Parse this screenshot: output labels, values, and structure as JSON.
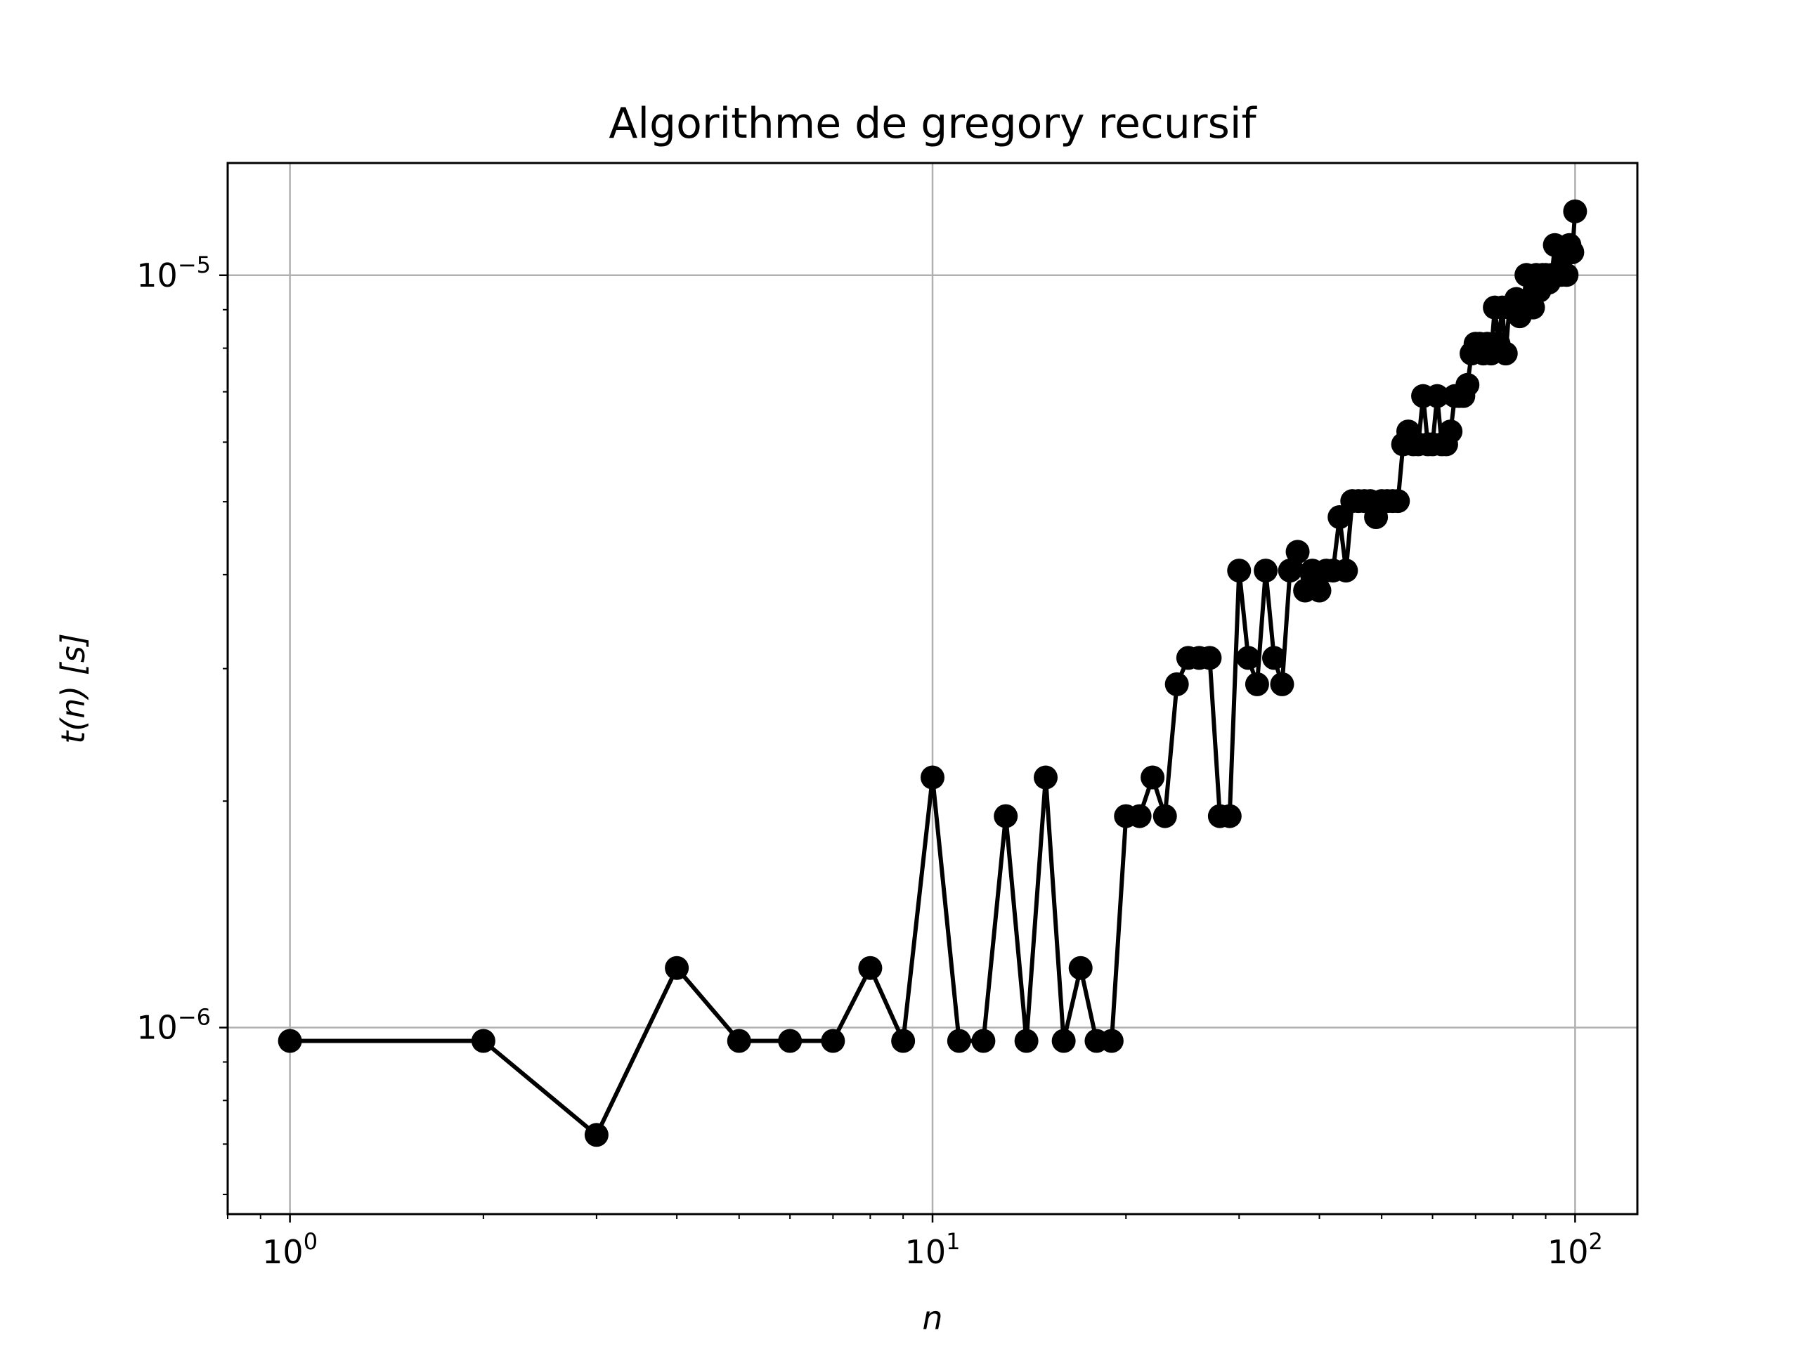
{
  "chart_data": {
    "type": "line",
    "title": "Algorithme de gregory recursif",
    "xlabel": "n",
    "ylabel": "t(n) [s]",
    "xscale": "log",
    "yscale": "log",
    "xlim": [
      0.8,
      125
    ],
    "ylim": [
      5.65e-07,
      1.41e-05
    ],
    "grid": true,
    "marker": "circle",
    "color": "#000000",
    "x_ticks": [
      {
        "base": "10",
        "exp": "0",
        "value": 1
      },
      {
        "base": "10",
        "exp": "1",
        "value": 10
      },
      {
        "base": "10",
        "exp": "2",
        "value": 100
      }
    ],
    "y_ticks": [
      {
        "base": "10",
        "exp": "−6",
        "value": 1e-06
      },
      {
        "base": "10",
        "exp": "−5",
        "value": 1e-05
      }
    ],
    "x": [
      1,
      2,
      3,
      4,
      5,
      6,
      7,
      8,
      9,
      10,
      11,
      12,
      13,
      14,
      15,
      16,
      17,
      18,
      19,
      20,
      21,
      22,
      23,
      24,
      25,
      26,
      27,
      28,
      29,
      30,
      31,
      32,
      33,
      34,
      35,
      36,
      37,
      38,
      39,
      40,
      41,
      42,
      43,
      44,
      45,
      46,
      47,
      48,
      49,
      50,
      51,
      52,
      53,
      54,
      55,
      56,
      57,
      58,
      59,
      60,
      61,
      62,
      63,
      64,
      65,
      66,
      67,
      68,
      69,
      70,
      71,
      72,
      73,
      74,
      75,
      76,
      77,
      78,
      79,
      80,
      81,
      82,
      83,
      84,
      85,
      86,
      87,
      88,
      89,
      90,
      91,
      92,
      93,
      94,
      95,
      96,
      97,
      98,
      99,
      100
    ],
    "y": [
      9.6e-07,
      9.6e-07,
      7.2e-07,
      1.2e-06,
      9.6e-07,
      9.6e-07,
      9.6e-07,
      1.2e-06,
      9.6e-07,
      2.15e-06,
      9.6e-07,
      9.6e-07,
      1.91e-06,
      9.6e-07,
      2.15e-06,
      9.6e-07,
      1.2e-06,
      9.6e-07,
      9.6e-07,
      1.91e-06,
      1.91e-06,
      2.15e-06,
      1.91e-06,
      2.86e-06,
      3.1e-06,
      3.1e-06,
      3.1e-06,
      1.91e-06,
      1.91e-06,
      4.05e-06,
      3.1e-06,
      2.86e-06,
      4.05e-06,
      3.1e-06,
      2.86e-06,
      4.05e-06,
      4.29e-06,
      3.81e-06,
      4.05e-06,
      3.81e-06,
      4.05e-06,
      4.05e-06,
      4.77e-06,
      4.05e-06,
      5.01e-06,
      5.01e-06,
      5.01e-06,
      5.01e-06,
      4.77e-06,
      5.01e-06,
      5.01e-06,
      5.01e-06,
      5.01e-06,
      5.96e-06,
      6.2e-06,
      5.96e-06,
      5.96e-06,
      6.91e-06,
      5.96e-06,
      5.96e-06,
      6.91e-06,
      5.96e-06,
      5.96e-06,
      6.2e-06,
      6.91e-06,
      6.91e-06,
      6.91e-06,
      7.15e-06,
      7.87e-06,
      8.11e-06,
      8.11e-06,
      7.87e-06,
      8.11e-06,
      7.87e-06,
      9.06e-06,
      8.11e-06,
      9.06e-06,
      7.87e-06,
      9.06e-06,
      9.06e-06,
      9.3e-06,
      8.82e-06,
      9.06e-06,
      1.001e-05,
      9.3e-06,
      9.06e-06,
      1.001e-05,
      9.54e-06,
      1.001e-05,
      1.001e-05,
      9.78e-06,
      1.001e-05,
      1.097e-05,
      1.001e-05,
      1.001e-05,
      1.073e-05,
      1.001e-05,
      1.097e-05,
      1.073e-05,
      1.216e-05
    ]
  }
}
